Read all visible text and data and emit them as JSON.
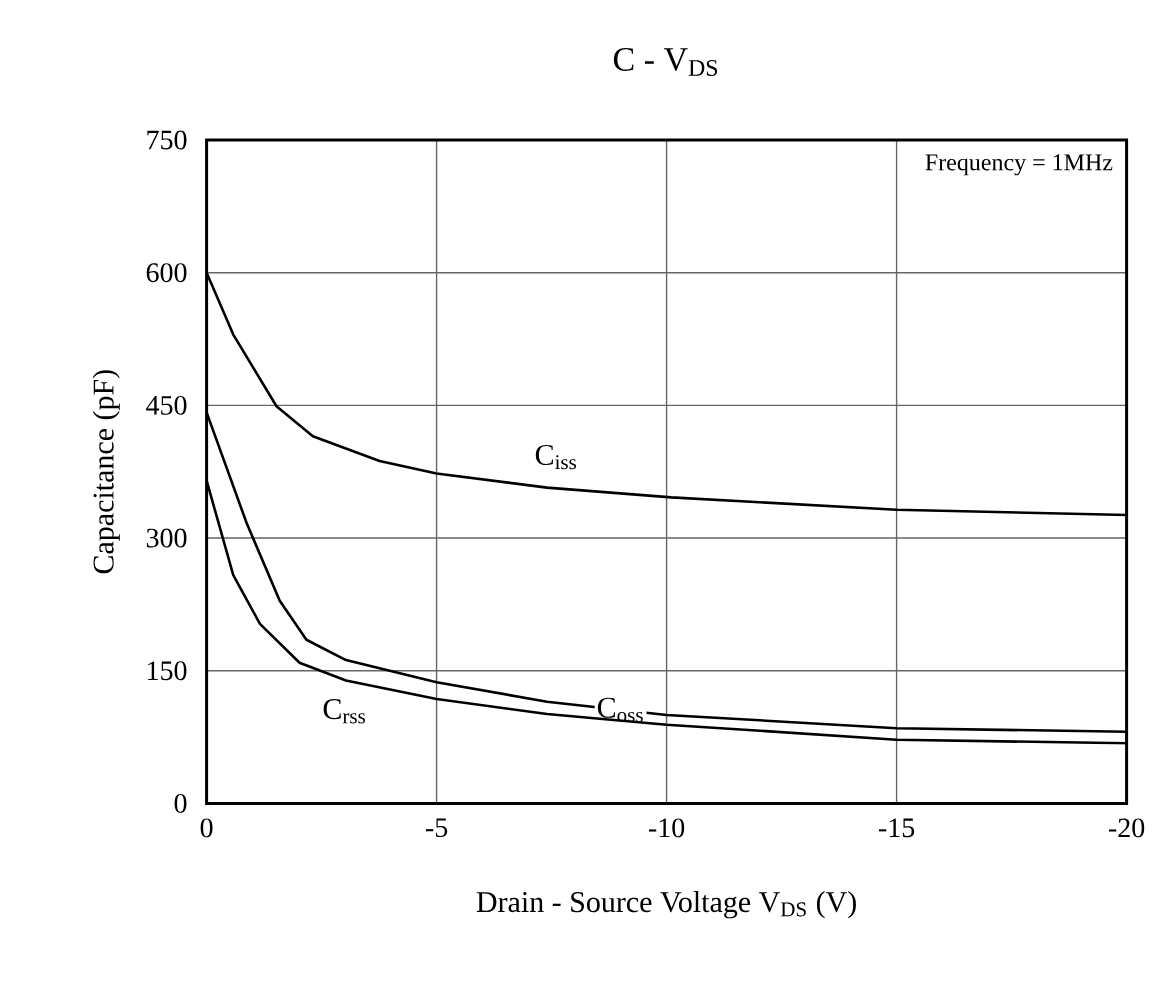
{
  "chart_data": {
    "type": "line",
    "title": "C - V$_{DS}$",
    "xlabel": "Drain - Source Voltage V$_{DS}$  (V)",
    "ylabel": "Capacitance  (pF)",
    "annotations": [
      "Frequency = 1MHz"
    ],
    "xlim": [
      0,
      -20
    ],
    "xticks": [
      0,
      -5,
      -10,
      -15,
      -20
    ],
    "ylim": [
      0,
      750
    ],
    "yticks": [
      0,
      150,
      300,
      450,
      600,
      750
    ],
    "grid": true,
    "marker": "none",
    "line_style": "solid",
    "series": [
      {
        "name": "C$_{iss}$",
        "color": "#000000",
        "x": [
          0,
          -0.58,
          -1.52,
          -2.31,
          -3.76,
          -5,
          -7.4,
          -10.1,
          -15,
          -20
        ],
        "values": [
          600,
          530,
          449,
          415,
          387,
          373,
          357,
          346,
          332,
          326
        ]
      },
      {
        "name": "C$_{oss}$",
        "color": "#000000",
        "x": [
          0,
          -0.87,
          -1.59,
          -2.17,
          -3.03,
          -5,
          -7.4,
          -10,
          -15,
          -20
        ],
        "values": [
          442,
          317,
          229,
          185,
          162,
          137,
          115,
          100,
          85,
          81
        ]
      },
      {
        "name": "C$_{rss}$",
        "color": "#000000",
        "x": [
          0,
          -0.58,
          -1.16,
          -2.02,
          -3.03,
          -5,
          -7.4,
          -10,
          -15,
          -20
        ],
        "values": [
          365,
          258,
          203,
          159,
          139,
          118,
          101,
          89,
          72,
          68
        ]
      }
    ]
  }
}
